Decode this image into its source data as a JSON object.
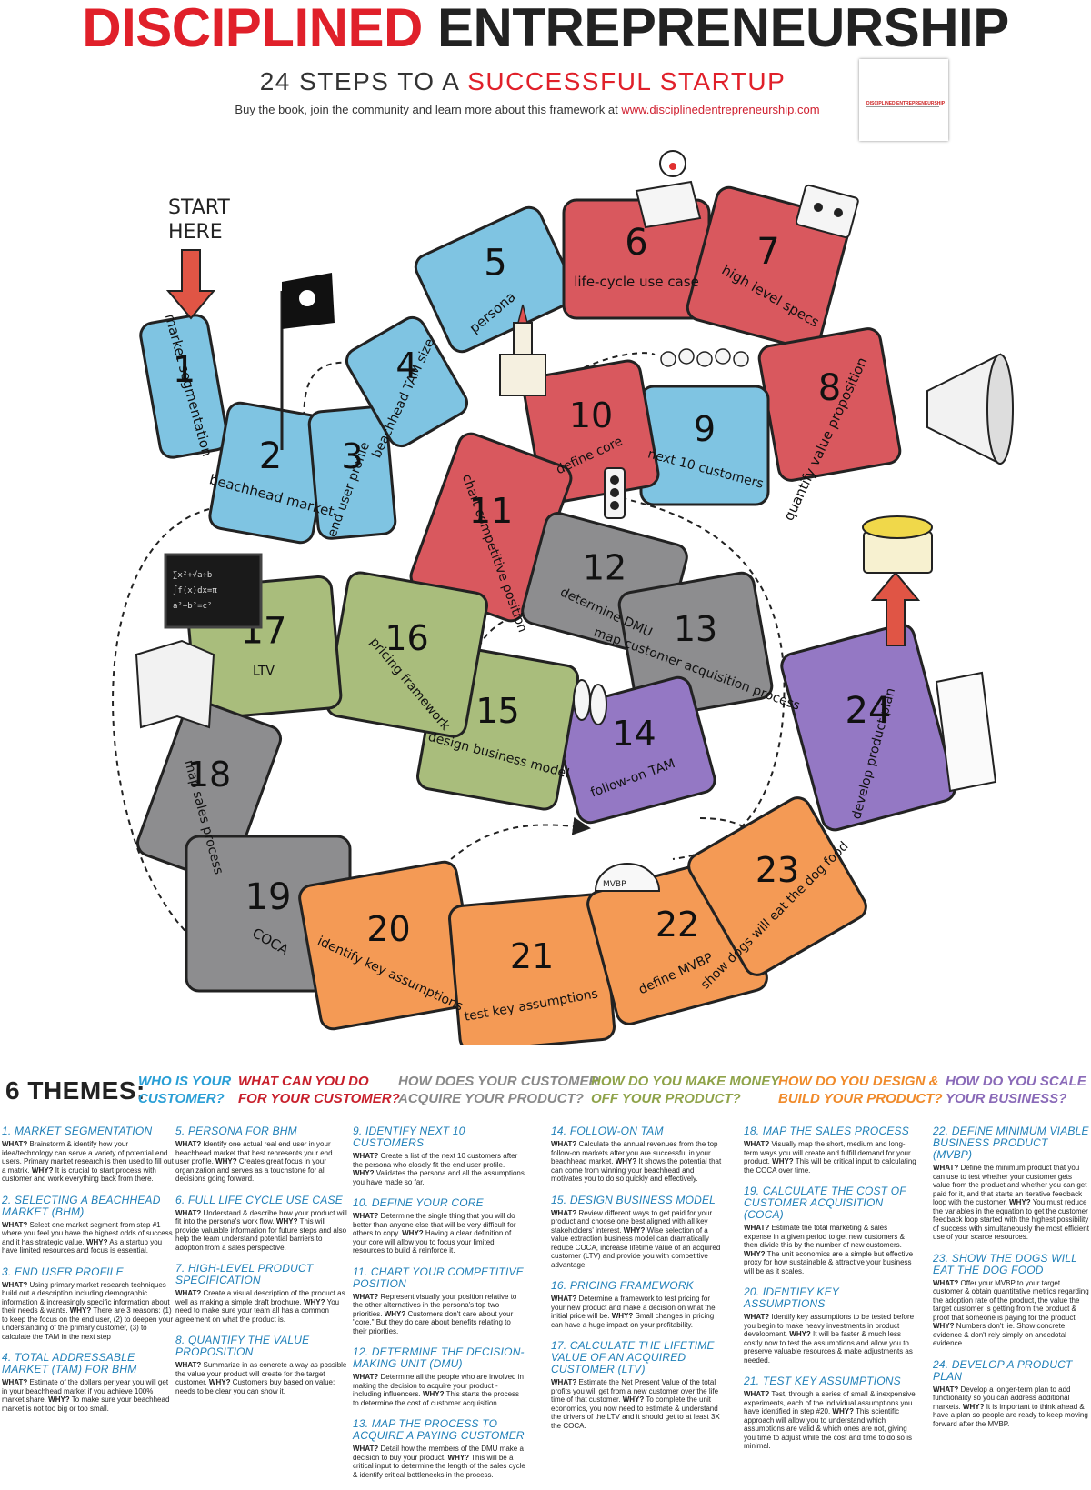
{
  "header": {
    "title_red": "DISCIPLINED",
    "title_black": "ENTREPRENEURSHIP",
    "subtitle_black": "24 STEPS TO A",
    "subtitle_red": "SUCCESSFUL STARTUP",
    "tagline": "Buy the book, join the community and learn more about this framework at",
    "url": "www.disciplinedentrepreneurship.com",
    "book_title": "DISCIPLINED ENTREPRENEURSHIP"
  },
  "board": {
    "start_label_line1": "START",
    "start_label_line2": "HERE",
    "colors": {
      "blue": "#7fc4e2",
      "red": "#d9585e",
      "gray": "#8d8d8f",
      "green": "#a9bd7c",
      "purple": "#9478c4",
      "orange": "#f49a55"
    },
    "steps": [
      {
        "num": "1",
        "label": "market segmentation",
        "theme": "blue"
      },
      {
        "num": "2",
        "label": "beachhead market",
        "theme": "blue"
      },
      {
        "num": "3",
        "label": "end user profile",
        "theme": "blue"
      },
      {
        "num": "4",
        "label": "beachhead TAM size",
        "theme": "blue"
      },
      {
        "num": "5",
        "label": "persona",
        "theme": "blue"
      },
      {
        "num": "6",
        "label": "life-cycle use case",
        "theme": "red"
      },
      {
        "num": "7",
        "label": "high level specs",
        "theme": "red"
      },
      {
        "num": "8",
        "label": "quantify value proposition",
        "theme": "red"
      },
      {
        "num": "9",
        "label": "next 10 customers",
        "theme": "blue"
      },
      {
        "num": "10",
        "label": "define core",
        "theme": "red"
      },
      {
        "num": "11",
        "label": "chart competitive position",
        "theme": "red"
      },
      {
        "num": "12",
        "label": "determine DMU",
        "theme": "gray"
      },
      {
        "num": "13",
        "label": "map customer acquisition process",
        "theme": "gray"
      },
      {
        "num": "14",
        "label": "follow-on TAM",
        "theme": "purple"
      },
      {
        "num": "15",
        "label": "design business model",
        "theme": "green"
      },
      {
        "num": "16",
        "label": "pricing framework",
        "theme": "green"
      },
      {
        "num": "17",
        "label": "LTV",
        "theme": "green"
      },
      {
        "num": "18",
        "label": "map sales process",
        "theme": "gray"
      },
      {
        "num": "19",
        "label": "COCA",
        "theme": "gray"
      },
      {
        "num": "20",
        "label": "identify key assumptions",
        "theme": "orange"
      },
      {
        "num": "21",
        "label": "test key assumptions",
        "theme": "orange"
      },
      {
        "num": "22",
        "label": "define MVBP",
        "theme": "orange"
      },
      {
        "num": "23",
        "label": "show dogs will eat the dog food",
        "theme": "orange"
      },
      {
        "num": "24",
        "label": "develop product plan",
        "theme": "purple"
      }
    ]
  },
  "themes": {
    "label": "6 THEMES:",
    "items": [
      {
        "line1": "WHO IS YOUR",
        "line2": "CUSTOMER?",
        "color": "#2a9fd6"
      },
      {
        "line1": "WHAT CAN YOU DO",
        "line2": "FOR YOUR CUSTOMER?",
        "color": "#c8202c"
      },
      {
        "line1": "HOW DOES YOUR CUSTOMER",
        "line2": "ACQUIRE YOUR PRODUCT?",
        "color": "#8a8a8a"
      },
      {
        "line1": "HOW DO YOU MAKE MONEY",
        "line2": "OFF YOUR PRODUCT?",
        "color": "#8fa34a"
      },
      {
        "line1": "HOW DO YOU DESIGN &",
        "line2": "BUILD YOUR PRODUCT?",
        "color": "#f08a2a"
      },
      {
        "line1": "HOW DO YOU SCALE",
        "line2": "YOUR BUSINESS?",
        "color": "#8a6ab8"
      }
    ]
  },
  "descriptions": {
    "col1": [
      {
        "title": "1. MARKET SEGMENTATION",
        "what": "WHAT?",
        "what_text": " Brainstorm & identify how your idea/technology can serve a variety of potential end users. Primary market research is then used to fill out a matrix. ",
        "why": "WHY?",
        "why_text": " It is crucial to start process with customer and work everything back from there."
      },
      {
        "title": "2. SELECTING A BEACHHEAD MARKET (BHM)",
        "what": "WHAT?",
        "what_text": " Select one market segment from step #1 where you feel you have the highest odds of success and it has strategic value. ",
        "why": "WHY?",
        "why_text": " As a startup you have limited resources and focus is essential."
      },
      {
        "title": "3. END USER PROFILE",
        "what": "WHAT?",
        "what_text": " Using primary market research techniques build out a description including demographic information & increasingly specific information about their needs & wants. ",
        "why": "WHY?",
        "why_text": " There are 3 reasons: (1) to keep the focus on the end user, (2) to deepen your understanding of the primary customer, (3) to calculate the TAM in the next step"
      },
      {
        "title": "4. TOTAL ADDRESSABLE MARKET (TAM) FOR BHM",
        "what": "WHAT?",
        "what_text": " Estimate of the dollars per year you will get in your beachhead market if you achieve 100% market share. ",
        "why": "WHY?",
        "why_text": " To make sure your beachhead market is not too big or too small."
      }
    ],
    "col2": [
      {
        "title": "5. PERSONA FOR BHM",
        "what": "WHAT?",
        "what_text": " Identify one actual real end user in your beachhead market that best represents your end user profile. ",
        "why": "WHY?",
        "why_text": " Creates great focus in your organization and serves as a touchstone for all decisions going forward."
      },
      {
        "title": "6. FULL LIFE CYCLE USE CASE",
        "what": "WHAT?",
        "what_text": " Understand & describe how your product will fit into the persona's work flow. ",
        "why": "WHY?",
        "why_text": " This will provide valuable information for future steps and also help the team understand potential barriers to adoption from a sales perspective."
      },
      {
        "title": "7. HIGH-LEVEL PRODUCT SPECIFICATION",
        "what": "WHAT?",
        "what_text": " Create a visual description of the product as well as making a simple draft brochure. ",
        "why": "WHY?",
        "why_text": " You need to make sure your team all has a common agreement on what the product is."
      },
      {
        "title": "8. QUANTIFY THE VALUE PROPOSITION",
        "what": "WHAT?",
        "what_text": " Summarize in as concrete a way as possible the value your product will create for the target customer. ",
        "why": "WHY?",
        "why_text": " Customers buy based on value; needs to be clear you can show it."
      }
    ],
    "col3": [
      {
        "title": "9. IDENTIFY NEXT 10 CUSTOMERS",
        "what": "WHAT?",
        "what_text": " Create a list of the next 10 customers after the persona who closely fit the end user profile. ",
        "why": "WHY?",
        "why_text": " Validates the persona and all the assumptions you have made so far."
      },
      {
        "title": "10. DEFINE YOUR CORE",
        "what": "WHAT?",
        "what_text": " Determine the single thing that you will do better than anyone else that will be very difficult for others to copy. ",
        "why": "WHY?",
        "why_text": " Having a clear definition of your core will allow you to focus your limited resources to build & reinforce it."
      },
      {
        "title": "11. CHART YOUR COMPETITIVE POSITION",
        "what": "WHAT?",
        "what_text": " Represent visually your position relative to the other alternatives in the persona's top two priorities. ",
        "why": "WHY?",
        "why_text": " Customers don't care about your \"core.\" But they do care about benefits relating to their priorities."
      },
      {
        "title": "12. DETERMINE THE DECISION-MAKING UNIT (DMU)",
        "what": "WHAT?",
        "what_text": " Determine all the people who are involved in making the decision to acquire your product - including influencers. ",
        "why": "WHY?",
        "why_text": " This starts the process to determine the cost of customer acquisition."
      },
      {
        "title": "13. MAP THE PROCESS TO ACQUIRE A PAYING CUSTOMER",
        "what": "WHAT?",
        "what_text": " Detail how the members of the DMU make a decision to buy your product. ",
        "why": "WHY?",
        "why_text": " This will be a critical input to determine the length of the sales cycle & identify critical bottlenecks in the process."
      }
    ],
    "col4": [
      {
        "title": "14. FOLLOW-ON TAM",
        "what": "WHAT?",
        "what_text": " Calculate the annual revenues from the top follow-on markets after you are successful in your beachhead market. ",
        "why": "WHY?",
        "why_text": " It shows the potential that can come from winning your beachhead and motivates you to do so quickly and effectively."
      },
      {
        "title": "15. DESIGN BUSINESS MODEL",
        "what": "WHAT?",
        "what_text": " Review different ways to get paid for your product and choose one best aligned with all key stakeholders' interest. ",
        "why": "WHY?",
        "why_text": " Wise selection of a value extraction business model can dramatically reduce COCA, increase lifetime value of an acquired customer (LTV) and provide you with competitive advantage."
      },
      {
        "title": "16. PRICING FRAMEWORK",
        "what": "WHAT?",
        "what_text": " Determine a framework to test pricing for your new product and make a decision on what the initial price will be. ",
        "why": "WHY?",
        "why_text": " Small changes in pricing can have a huge impact on your profitability."
      },
      {
        "title": "17. CALCULATE THE LIFETIME VALUE OF AN ACQUIRED CUSTOMER (LTV)",
        "what": "WHAT?",
        "what_text": " Estimate the Net Present Value of the total profits you will get from a new customer over the life time of that customer. ",
        "why": "WHY?",
        "why_text": " To complete the unit economics, you now need to estimate & understand the drivers of the LTV and it should get to at least 3X the COCA."
      }
    ],
    "col5": [
      {
        "title": "18. MAP THE SALES PROCESS",
        "what": "WHAT?",
        "what_text": " Visually map the short, medium and long-term ways you will create and fulfill demand for your product. ",
        "why": "WHY?",
        "why_text": " This will be critical input to calculating the COCA over time."
      },
      {
        "title": "19. CALCULATE THE COST OF CUSTOMER ACQUISITION (COCA)",
        "what": "WHAT?",
        "what_text": " Estimate the total marketing & sales expense in a given period to get new customers & then divide this by the number of new customers. ",
        "why": "WHY?",
        "why_text": " The unit economics are a simple but effective proxy for how sustainable & attractive your business will be as it scales."
      },
      {
        "title": "20. IDENTIFY KEY ASSUMPTIONS",
        "what": "WHAT?",
        "what_text": " Identify key assumptions to be tested before you begin to make heavy investments in product development. ",
        "why": "WHY?",
        "why_text": " It will be faster & much less costly now to test the assumptions and allow you to preserve valuable resources & make adjustments as needed."
      },
      {
        "title": "21. TEST KEY ASSUMPTIONS",
        "what": "WHAT?",
        "what_text": " Test, through a series of small & inexpensive experiments, each of the individual assumptions you have identified in step #20. ",
        "why": "WHY?",
        "why_text": " This scientific approach will allow you to understand which assumptions are valid & which ones are not, giving you time to adjust while the cost and time to do so is minimal."
      }
    ],
    "col6": [
      {
        "title": "22. DEFINE MINIMUM VIABLE BUSINESS PRODUCT (MVBP)",
        "what": "WHAT?",
        "what_text": " Define the minimum product that you can use to test whether your customer gets value from the product and whether you can get paid for it, and that starts an iterative feedback loop with the customer. ",
        "why": "WHY?",
        "why_text": " You must reduce the variables in the equation to get the customer feedback loop started with the highest possibility of success with simultaneously the most efficient use of your scarce resources."
      },
      {
        "title": "23. SHOW THE DOGS WILL EAT THE DOG FOOD",
        "what": "WHAT?",
        "what_text": " Offer your MVBP to your target customer & obtain quantitative metrics regarding the adoption rate of the product, the value the target customer is getting from the product & proof that someone is paying for the product. ",
        "why": "WHY?",
        "why_text": " Numbers don't lie. Show concrete evidence & don't rely simply on anecdotal evidence."
      },
      {
        "title": "24. DEVELOP A PRODUCT PLAN",
        "what": "WHAT?",
        "what_text": " Develop a longer-term plan to add functionality so you can address additional markets. ",
        "why": "WHY?",
        "why_text": " It is important to think ahead & have a plan so people are ready to keep moving forward after the MVBP."
      }
    ]
  }
}
